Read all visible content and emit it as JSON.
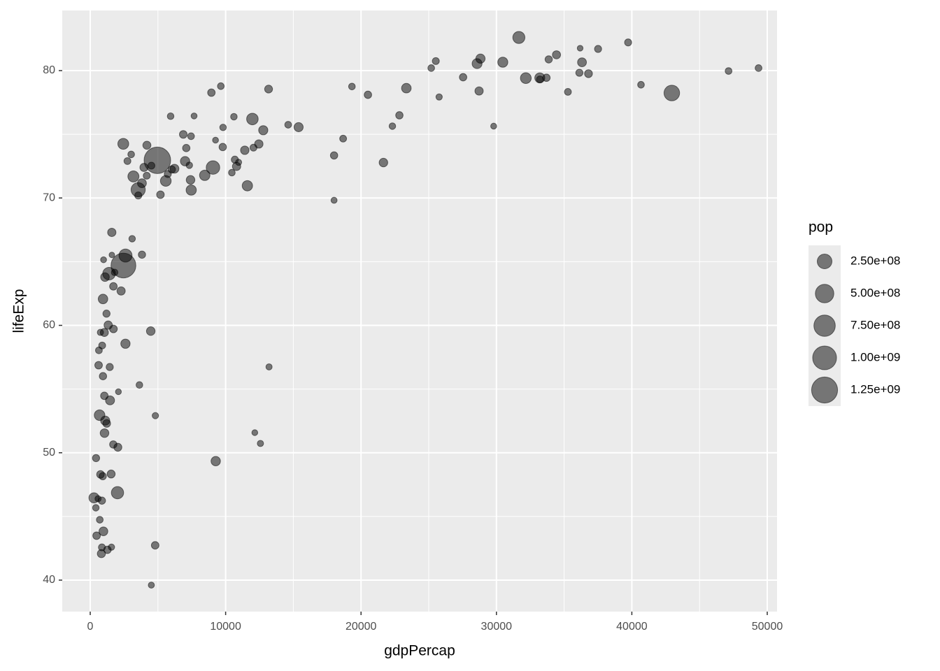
{
  "chart_data": {
    "type": "scatter",
    "x_label": "gdpPercap",
    "y_label": "lifeExp",
    "size_label": "pop",
    "color": "#000000",
    "opacity": 0.5,
    "xlim": [
      -2066,
      50723
    ],
    "ylim": [
      37.53,
      84.72
    ],
    "xticks": [
      0,
      10000,
      20000,
      30000,
      40000,
      50000
    ],
    "yticks": [
      40,
      50,
      60,
      70,
      80
    ],
    "grid": true,
    "legend_position": "right",
    "size_breaks": [
      {
        "value": 250000000,
        "label": "2.50e+08"
      },
      {
        "value": 500000000,
        "label": "5.00e+08"
      },
      {
        "value": 750000000,
        "label": "7.50e+08"
      },
      {
        "value": 1000000000,
        "label": "1.00e+09"
      },
      {
        "value": 1250000000,
        "label": "1.25e+09"
      }
    ],
    "x": [
      975,
      5937,
      6223,
      4797,
      12779,
      34435,
      36126,
      29796,
      1391,
      33693,
      1441,
      3822,
      7446,
      12570,
      9066,
      10681,
      1217,
      430,
      1714,
      2042,
      36319,
      706,
      1704,
      13172,
      4959,
      7007,
      986,
      278,
      3633,
      9645,
      1545,
      14619,
      8948,
      22833,
      35278,
      2082,
      6025,
      6873,
      5581,
      5728,
      12154,
      641,
      691,
      33207,
      30470,
      13206,
      753,
      32170,
      1328,
      27538,
      5186,
      943,
      579,
      1202,
      3548,
      39725,
      18009,
      36181,
      2452,
      3541,
      11606,
      4471,
      40676,
      25523,
      28570,
      7321,
      31656,
      4519,
      1463,
      1593,
      23348,
      10461,
      1569,
      415,
      12057,
      1045,
      759,
      12452,
      1043,
      1803,
      10957,
      11978,
      3096,
      9254,
      3820,
      824,
      944,
      4811,
      1091,
      36798,
      25185,
      2749,
      619,
      2014,
      49357,
      22316,
      2606,
      9809,
      4173,
      7409,
      3190,
      15390,
      20510,
      19329,
      7670,
      10808,
      863,
      1598,
      21655,
      1712,
      9787,
      863,
      47143,
      18678,
      25768,
      926,
      9270,
      28821,
      3970,
      2602,
      4513,
      33860,
      37506,
      4185,
      28718,
      1107,
      7458,
      883,
      18009,
      7093,
      8458,
      1056,
      33203,
      42952,
      10611,
      11416,
      2442,
      3025,
      2281,
      1271,
      470
    ],
    "y": [
      43.83,
      76.42,
      72.3,
      42.73,
      75.32,
      81.24,
      79.83,
      75.64,
      64.06,
      79.44,
      56.73,
      65.55,
      74.85,
      50.73,
      72.39,
      73.01,
      52.3,
      49.58,
      59.72,
      50.43,
      80.65,
      44.74,
      50.65,
      78.55,
      72.96,
      72.89,
      65.15,
      46.46,
      55.32,
      78.78,
      48.33,
      75.75,
      78.27,
      76.49,
      78.33,
      54.79,
      72.24,
      74.99,
      71.34,
      71.88,
      51.58,
      58.04,
      52.95,
      79.31,
      80.66,
      56.74,
      59.45,
      79.41,
      60.02,
      79.48,
      70.26,
      56.01,
      46.39,
      60.92,
      70.2,
      82.21,
      73.34,
      81.76,
      64.7,
      70.65,
      70.96,
      59.55,
      78.89,
      80.75,
      80.55,
      72.57,
      82.6,
      72.54,
      54.11,
      67.3,
      78.62,
      71.99,
      42.59,
      45.68,
      73.95,
      59.44,
      48.3,
      74.24,
      54.47,
      64.16,
      72.8,
      76.2,
      66.8,
      74.54,
      71.16,
      42.08,
      62.07,
      52.91,
      63.79,
      79.76,
      80.2,
      72.9,
      56.87,
      46.86,
      80.2,
      75.64,
      65.48,
      75.54,
      71.75,
      71.42,
      71.69,
      75.56,
      78.1,
      78.75,
      76.44,
      72.48,
      46.24,
      65.53,
      72.78,
      63.06,
      74.0,
      42.57,
      79.97,
      74.66,
      77.93,
      48.16,
      49.34,
      80.94,
      72.4,
      58.56,
      39.61,
      80.88,
      81.7,
      74.14,
      78.4,
      52.52,
      70.62,
      58.42,
      69.82,
      73.92,
      71.78,
      51.54,
      79.43,
      78.24,
      76.38,
      73.75,
      74.25,
      73.42,
      62.7,
      42.38,
      43.49
    ],
    "size": [
      31900000,
      3600000,
      33300000,
      12400000,
      40300000,
      20400000,
      8200000,
      700000,
      150400000,
      10400000,
      8100000,
      9100000,
      4600000,
      1600000,
      190000000,
      7300000,
      14300000,
      8400000,
      14100000,
      17700000,
      33400000,
      4400000,
      10200000,
      16300000,
      1318700000,
      44200000,
      700000,
      64600000,
      3800000,
      4100000,
      18000000,
      4500000,
      11400000,
      10200000,
      5500000,
      500000,
      9300000,
      13800000,
      80300000,
      6900000,
      550000,
      4900000,
      76500000,
      5200000,
      61100000,
      1450000,
      1700000,
      82400000,
      22900000,
      10700000,
      12600000,
      9900000,
      1500000,
      8500000,
      7500000,
      6980000,
      9960000,
      300000,
      1110000000,
      223500000,
      69500000,
      27500000,
      4100000,
      6400000,
      58100000,
      2800000,
      127500000,
      6050000,
      35600000,
      23300000,
      49000000,
      3900000,
      2000000,
      3200000,
      6000000,
      19200000,
      13300000,
      24800000,
      12000000,
      3300000,
      1250000,
      108700000,
      2900000,
      680000,
      33800000,
      20000000,
      47800000,
      2050000,
      28900000,
      16600000,
      4100000,
      5700000,
      12900000,
      135000000,
      4600000,
      3200000,
      169000000,
      3200000,
      6700000,
      28700000,
      91100000,
      38500000,
      10600000,
      3900000,
      800000,
      22300000,
      8900000,
      200000,
      27600000,
      12300000,
      10200000,
      6100000,
      4550000,
      5400000,
      2000000,
      9100000,
      44000000,
      40400000,
      20400000,
      42300000,
      1100000,
      9000000,
      7550000,
      19300000,
      23200000,
      38100000,
      65100000,
      5700000,
      1060000,
      10300000,
      71200000,
      29200000,
      60800000,
      301000000,
      3400000,
      26100000,
      85300000,
      4000000,
      22200000,
      11700000,
      12300000
    ]
  }
}
